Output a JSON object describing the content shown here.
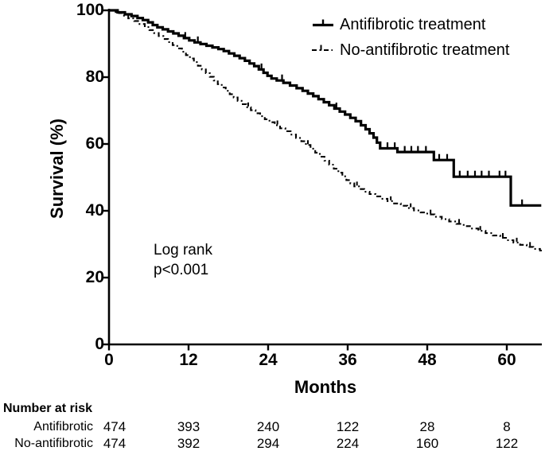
{
  "colors": {
    "line": "#000000",
    "background": "#ffffff",
    "text": "#000000"
  },
  "chart_data": {
    "type": "line",
    "subtype": "kaplan-meier-step",
    "title": "",
    "xlabel": "Months",
    "ylabel": "Survival (%)",
    "xlim": [
      0,
      65.3
    ],
    "ylim": [
      0,
      100
    ],
    "x_ticks": [
      0,
      12,
      24,
      36,
      48,
      60
    ],
    "y_ticks": [
      100,
      80,
      60,
      40,
      20,
      0
    ],
    "grid": "off",
    "legend_position": "top-right",
    "annotation": {
      "lines": [
        "Log rank",
        "p<0.001"
      ]
    },
    "series": [
      {
        "name": "Antifibrotic treatment",
        "style": "solid",
        "end_time": 65.2,
        "steps": [
          [
            0,
            100
          ],
          [
            1.3,
            99.4
          ],
          [
            2.4,
            98.8
          ],
          [
            3.4,
            98.3
          ],
          [
            4.3,
            97.7
          ],
          [
            5.1,
            97.1
          ],
          [
            5.9,
            96.4
          ],
          [
            6.6,
            95.6
          ],
          [
            7.3,
            94.9
          ],
          [
            8.1,
            94.3
          ],
          [
            8.9,
            93.7
          ],
          [
            9.7,
            93.1
          ],
          [
            10.5,
            92.4
          ],
          [
            11.3,
            91.7
          ],
          [
            12.1,
            91.0
          ],
          [
            12.9,
            90.4
          ],
          [
            13.8,
            89.9
          ],
          [
            14.7,
            89.4
          ],
          [
            15.6,
            88.9
          ],
          [
            16.5,
            88.4
          ],
          [
            17.3,
            87.8
          ],
          [
            18.1,
            87.1
          ],
          [
            18.9,
            86.4
          ],
          [
            19.7,
            85.7
          ],
          [
            20.5,
            84.9
          ],
          [
            21.2,
            84.1
          ],
          [
            21.9,
            83.3
          ],
          [
            22.6,
            82.3
          ],
          [
            23.3,
            81.3
          ],
          [
            23.9,
            80.4
          ],
          [
            24.5,
            79.6
          ],
          [
            25.3,
            79.0
          ],
          [
            26.3,
            78.3
          ],
          [
            27.3,
            77.5
          ],
          [
            28.3,
            76.7
          ],
          [
            29.2,
            75.9
          ],
          [
            30,
            75.1
          ],
          [
            30.8,
            74.3
          ],
          [
            31.6,
            73.4
          ],
          [
            32.4,
            72.5
          ],
          [
            33.2,
            71.6
          ],
          [
            34,
            70.6
          ],
          [
            34.8,
            69.7
          ],
          [
            35.6,
            68.8
          ],
          [
            36.4,
            67.8
          ],
          [
            37.2,
            66.8
          ],
          [
            38,
            65.6
          ],
          [
            38.7,
            64.4
          ],
          [
            39.3,
            63.2
          ],
          [
            39.9,
            61.9
          ],
          [
            40.4,
            60.4
          ],
          [
            40.9,
            58.7
          ],
          [
            43.5,
            57.6
          ],
          [
            49,
            55.2
          ],
          [
            52,
            50.2
          ],
          [
            60.6,
            41.6
          ]
        ],
        "censor_times": [
          11.5,
          13.4,
          23,
          26.1,
          34.3,
          42,
          43.1,
          44.6,
          45.6,
          46.6,
          47.8,
          49.8,
          51,
          52.9,
          54.1,
          55.2,
          56.2,
          57.3,
          58.9,
          59.8,
          62.3
        ]
      },
      {
        "name": "No-antifibrotic treatment",
        "style": "dashed",
        "end_time": 65.3,
        "steps": [
          [
            0,
            100
          ],
          [
            1,
            99.2
          ],
          [
            2,
            98.4
          ],
          [
            2.9,
            97.6
          ],
          [
            3.8,
            96.8
          ],
          [
            4.6,
            95.9
          ],
          [
            5.4,
            95.0
          ],
          [
            6.1,
            94.1
          ],
          [
            6.8,
            93.2
          ],
          [
            7.5,
            92.3
          ],
          [
            8.2,
            91.4
          ],
          [
            8.9,
            90.5
          ],
          [
            9.6,
            89.6
          ],
          [
            10.3,
            88.6
          ],
          [
            11,
            87.6
          ],
          [
            11.6,
            86.6
          ],
          [
            12.2,
            85.6
          ],
          [
            12.8,
            84.5
          ],
          [
            13.4,
            83.4
          ],
          [
            14,
            82.3
          ],
          [
            14.6,
            81.2
          ],
          [
            15.2,
            80.1
          ],
          [
            15.8,
            79.0
          ],
          [
            16.4,
            77.9
          ],
          [
            17,
            76.9
          ],
          [
            17.6,
            75.9
          ],
          [
            18.2,
            74.9
          ],
          [
            18.8,
            73.9
          ],
          [
            19.4,
            72.9
          ],
          [
            20,
            71.9
          ],
          [
            20.7,
            71.0
          ],
          [
            21.4,
            70.1
          ],
          [
            22.1,
            69.2
          ],
          [
            22.8,
            68.3
          ],
          [
            23.5,
            67.4
          ],
          [
            24.2,
            66.5
          ],
          [
            25,
            65.6
          ],
          [
            25.8,
            64.7
          ],
          [
            26.6,
            63.8
          ],
          [
            27.4,
            62.8
          ],
          [
            28.2,
            61.8
          ],
          [
            29,
            60.8
          ],
          [
            29.7,
            59.7
          ],
          [
            30.4,
            58.6
          ],
          [
            31.1,
            57.4
          ],
          [
            31.8,
            56.2
          ],
          [
            32.5,
            55.0
          ],
          [
            33.2,
            53.8
          ],
          [
            33.9,
            52.6
          ],
          [
            34.6,
            51.4
          ],
          [
            35.2,
            50.3
          ],
          [
            35.8,
            49.2
          ],
          [
            36.4,
            48.2
          ],
          [
            37,
            47.3
          ],
          [
            37.7,
            46.5
          ],
          [
            38.5,
            45.7
          ],
          [
            39.3,
            45.0
          ],
          [
            40.2,
            44.3
          ],
          [
            41.1,
            43.6
          ],
          [
            42,
            42.9
          ],
          [
            43,
            42.2
          ],
          [
            44,
            41.5
          ],
          [
            45,
            40.8
          ],
          [
            46,
            40.1
          ],
          [
            47,
            39.5
          ],
          [
            48,
            38.9
          ],
          [
            49.1,
            38.2
          ],
          [
            50.2,
            37.5
          ],
          [
            51.3,
            36.8
          ],
          [
            52.4,
            36.1
          ],
          [
            53.5,
            35.4
          ],
          [
            54.6,
            34.7
          ],
          [
            55.7,
            34.0
          ],
          [
            56.8,
            33.3
          ],
          [
            57.9,
            32.6
          ],
          [
            59,
            31.9
          ],
          [
            60,
            31.2
          ],
          [
            61,
            30.5
          ],
          [
            62,
            29.8
          ],
          [
            63,
            29.2
          ],
          [
            64,
            28.6
          ],
          [
            65,
            28.1
          ]
        ],
        "censor_times": [
          21,
          25.4,
          30,
          37.4,
          42.5,
          45.5,
          48.5,
          52.8,
          56,
          59.4,
          61.5,
          63.5
        ]
      }
    ]
  },
  "risk_table": {
    "title": "Number at risk",
    "time_points": [
      0,
      12,
      24,
      36,
      48,
      60
    ],
    "rows": [
      {
        "label": "Antifibrotic",
        "values": [
          "474",
          "393",
          "240",
          "122",
          "28",
          "8"
        ]
      },
      {
        "label": "No-antifibrotic",
        "values": [
          "474",
          "392",
          "294",
          "224",
          "160",
          "122"
        ]
      }
    ]
  }
}
